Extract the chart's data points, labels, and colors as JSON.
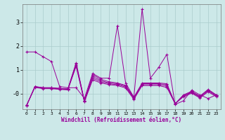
{
  "xlabel": "Windchill (Refroidissement éolien,°C)",
  "bg_color": "#cce8e8",
  "line_color": "#990099",
  "grid_color": "#aacccc",
  "x_ticks": [
    0,
    1,
    2,
    3,
    4,
    5,
    6,
    7,
    8,
    9,
    10,
    11,
    12,
    13,
    14,
    15,
    16,
    17,
    18,
    19,
    20,
    21,
    22,
    23
  ],
  "y_ticks": [
    0,
    1,
    2,
    3
  ],
  "y_tick_labels": [
    "-0",
    "1",
    "2",
    "3"
  ],
  "ylim": [
    -0.65,
    3.75
  ],
  "xlim": [
    -0.5,
    23.5
  ],
  "series": [
    [
      1.75,
      1.75,
      1.55,
      1.35,
      0.3,
      0.25,
      0.25,
      -0.2,
      0.85,
      0.65,
      0.65,
      2.85,
      0.45,
      -0.15,
      3.55,
      0.65,
      1.1,
      1.65,
      -0.45,
      -0.3,
      0.15,
      -0.05,
      -0.2,
      -0.05
    ],
    [
      -0.5,
      0.3,
      0.25,
      0.25,
      0.22,
      0.2,
      1.3,
      -0.3,
      0.8,
      0.6,
      0.5,
      0.45,
      0.35,
      -0.15,
      0.45,
      0.45,
      0.45,
      0.42,
      -0.42,
      -0.05,
      0.1,
      -0.1,
      0.18,
      -0.05
    ],
    [
      -0.5,
      0.3,
      0.25,
      0.25,
      0.22,
      0.2,
      1.25,
      -0.3,
      0.72,
      0.55,
      0.45,
      0.42,
      0.32,
      -0.17,
      0.42,
      0.42,
      0.42,
      0.38,
      -0.42,
      -0.08,
      0.08,
      -0.12,
      0.15,
      -0.07
    ],
    [
      -0.48,
      0.28,
      0.23,
      0.23,
      0.2,
      0.18,
      1.2,
      -0.32,
      0.65,
      0.5,
      0.42,
      0.38,
      0.28,
      -0.2,
      0.38,
      0.38,
      0.38,
      0.32,
      -0.42,
      -0.1,
      0.05,
      -0.15,
      0.12,
      -0.1
    ],
    [
      -0.48,
      0.26,
      0.21,
      0.21,
      0.18,
      0.16,
      1.15,
      -0.34,
      0.58,
      0.45,
      0.38,
      0.34,
      0.24,
      -0.24,
      0.34,
      0.34,
      0.34,
      0.26,
      -0.42,
      -0.13,
      0.02,
      -0.18,
      0.08,
      -0.13
    ]
  ]
}
